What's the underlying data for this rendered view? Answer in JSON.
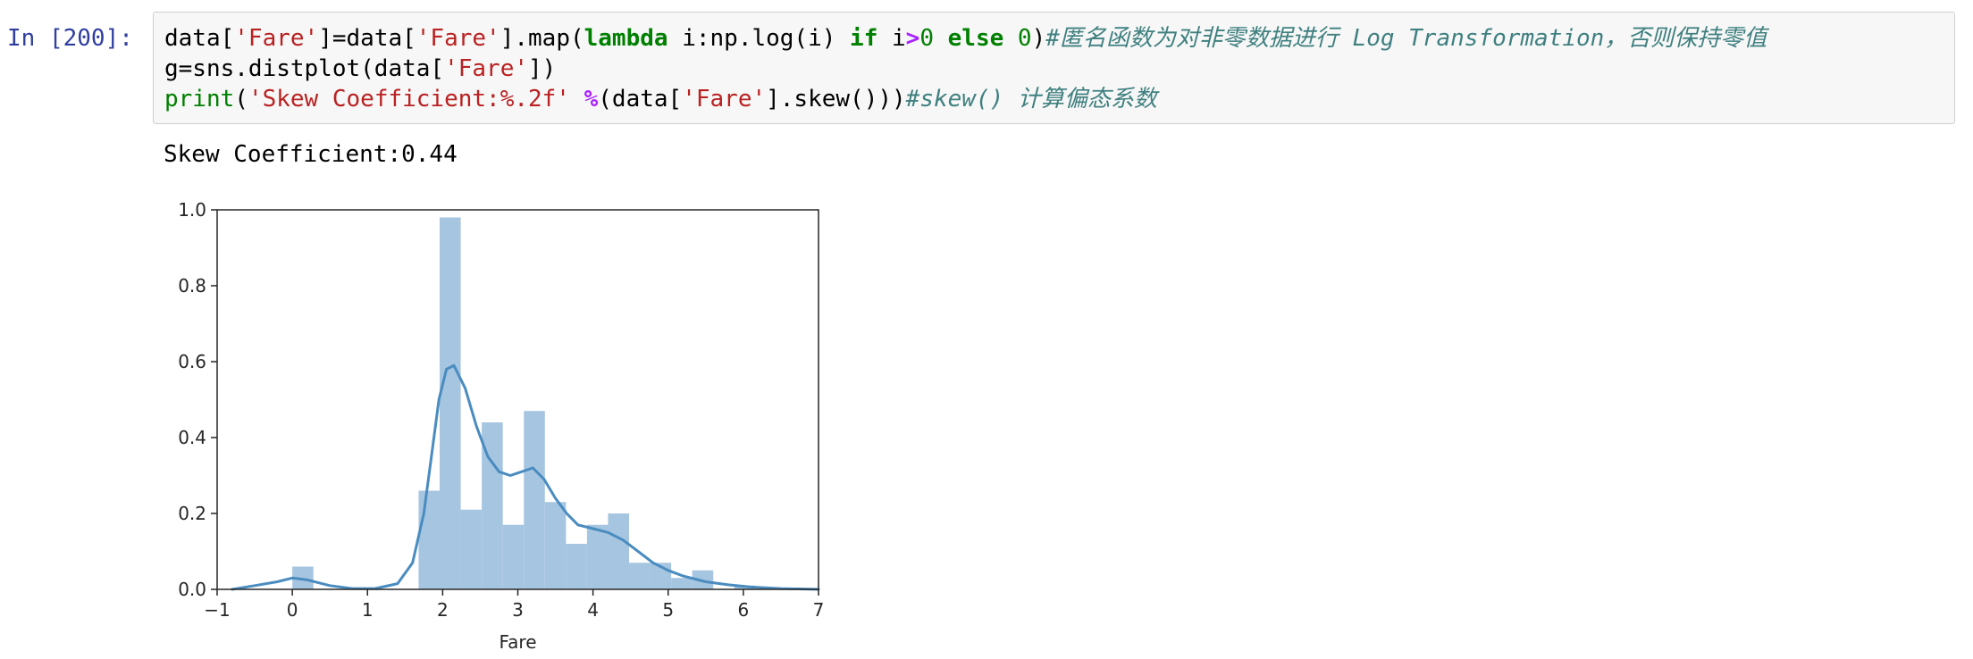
{
  "cell": {
    "prompt": "In [200]:",
    "code": {
      "line1": [
        {
          "t": "data[",
          "c": "plain"
        },
        {
          "t": "'Fare'",
          "c": "str"
        },
        {
          "t": "]=data[",
          "c": "plain"
        },
        {
          "t": "'Fare'",
          "c": "str"
        },
        {
          "t": "].map(",
          "c": "plain"
        },
        {
          "t": "lambda",
          "c": "kw"
        },
        {
          "t": " i:np.log(i) ",
          "c": "plain"
        },
        {
          "t": "if",
          "c": "kw"
        },
        {
          "t": " i",
          "c": "plain"
        },
        {
          "t": ">",
          "c": "op"
        },
        {
          "t": "0",
          "c": "num"
        },
        {
          "t": " ",
          "c": "plain"
        },
        {
          "t": "else",
          "c": "kw"
        },
        {
          "t": " ",
          "c": "plain"
        },
        {
          "t": "0",
          "c": "num"
        },
        {
          "t": ")",
          "c": "plain"
        },
        {
          "t": "#匿名函数为对非零数据进行 Log Transformation，否则保持零值",
          "c": "comment"
        }
      ],
      "line2": [
        {
          "t": "g=sns.distplot(data[",
          "c": "plain"
        },
        {
          "t": "'Fare'",
          "c": "str"
        },
        {
          "t": "])",
          "c": "plain"
        }
      ],
      "line3": [
        {
          "t": "print",
          "c": "builtin"
        },
        {
          "t": "(",
          "c": "plain"
        },
        {
          "t": "'Skew Coefficient:%.2f'",
          "c": "str"
        },
        {
          "t": " ",
          "c": "plain"
        },
        {
          "t": "%",
          "c": "op"
        },
        {
          "t": "(data[",
          "c": "plain"
        },
        {
          "t": "'Fare'",
          "c": "str"
        },
        {
          "t": "].skew()))",
          "c": "plain"
        },
        {
          "t": "#skew() 计算偏态系数",
          "c": "comment"
        }
      ]
    },
    "output_text": "Skew Coefficient:0.44"
  },
  "chart_data": {
    "type": "histogram",
    "xlabel": "Fare",
    "ylabel": "",
    "xlim": [
      -1.0,
      7.0
    ],
    "ylim": [
      0.0,
      1.0
    ],
    "xticks": [
      "-1",
      "0",
      "1",
      "2",
      "3",
      "4",
      "5",
      "6",
      "7"
    ],
    "yticks": [
      "0.0",
      "0.2",
      "0.4",
      "0.6",
      "0.8",
      "1.0"
    ],
    "histogram": {
      "bin_width": 0.28,
      "bins": [
        {
          "x0": 0.0,
          "density": 0.06
        },
        {
          "x0": 1.68,
          "density": 0.26
        },
        {
          "x0": 1.96,
          "density": 0.98
        },
        {
          "x0": 2.24,
          "density": 0.21
        },
        {
          "x0": 2.52,
          "density": 0.44
        },
        {
          "x0": 2.8,
          "density": 0.17
        },
        {
          "x0": 3.08,
          "density": 0.47
        },
        {
          "x0": 3.36,
          "density": 0.23
        },
        {
          "x0": 3.64,
          "density": 0.12
        },
        {
          "x0": 3.92,
          "density": 0.17
        },
        {
          "x0": 4.2,
          "density": 0.2
        },
        {
          "x0": 4.48,
          "density": 0.07
        },
        {
          "x0": 4.76,
          "density": 0.07
        },
        {
          "x0": 5.04,
          "density": 0.03
        },
        {
          "x0": 5.32,
          "density": 0.05
        },
        {
          "x0": 5.88,
          "density": 0.01
        }
      ]
    },
    "kde": {
      "x": [
        -0.8,
        -0.5,
        -0.2,
        0.0,
        0.2,
        0.5,
        0.8,
        1.1,
        1.4,
        1.6,
        1.75,
        1.85,
        1.95,
        2.05,
        2.15,
        2.3,
        2.45,
        2.6,
        2.75,
        2.9,
        3.05,
        3.2,
        3.35,
        3.5,
        3.65,
        3.8,
        4.0,
        4.2,
        4.4,
        4.6,
        4.8,
        5.0,
        5.2,
        5.5,
        5.8,
        6.1,
        6.5,
        7.0
      ],
      "y": [
        0.0,
        0.01,
        0.02,
        0.03,
        0.025,
        0.01,
        0.002,
        0.002,
        0.015,
        0.07,
        0.2,
        0.35,
        0.5,
        0.58,
        0.59,
        0.53,
        0.43,
        0.35,
        0.31,
        0.3,
        0.31,
        0.32,
        0.29,
        0.24,
        0.2,
        0.17,
        0.16,
        0.15,
        0.13,
        0.1,
        0.07,
        0.05,
        0.035,
        0.02,
        0.012,
        0.006,
        0.002,
        0.0
      ]
    },
    "colors": {
      "bars": "#a6c5e0",
      "kde_line": "#4a8cc0",
      "axis": "#262626"
    },
    "grid": false,
    "legend": "none"
  }
}
